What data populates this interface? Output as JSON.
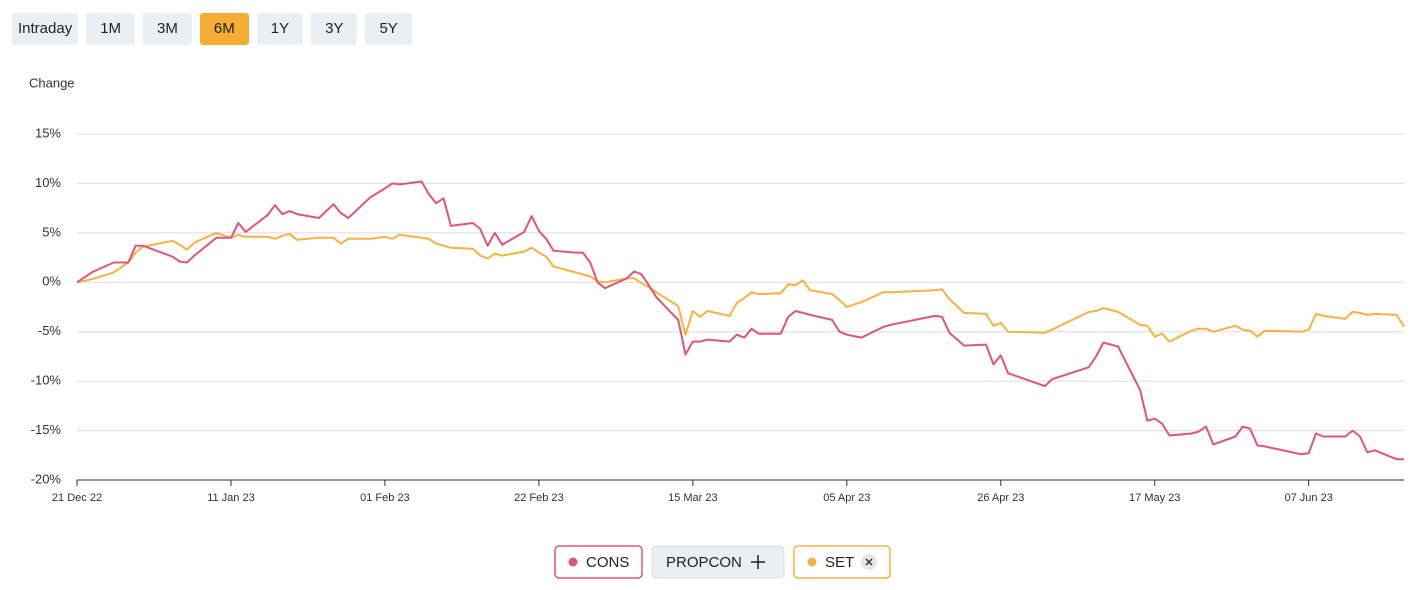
{
  "chart_data": {
    "type": "line",
    "range_buttons": [
      "Intraday",
      "1M",
      "3M",
      "6M",
      "1Y",
      "3Y",
      "5Y"
    ],
    "active_range": "6M",
    "y_label": "Change",
    "compare_options": [
      "PROPCON"
    ],
    "xlim": [
      "2022-12-21",
      "2023-06-20"
    ],
    "xticks": [
      {
        "value": "2022-12-21",
        "label": "21 Dec 22"
      },
      {
        "value": "2023-01-11",
        "label": "11 Jan 23"
      },
      {
        "value": "2023-02-01",
        "label": "01 Feb 23"
      },
      {
        "value": "2023-02-22",
        "label": "22 Feb 23"
      },
      {
        "value": "2023-03-15",
        "label": "15 Mar 23"
      },
      {
        "value": "2023-04-05",
        "label": "05 Apr 23"
      },
      {
        "value": "2023-04-26",
        "label": "26 Apr 23"
      },
      {
        "value": "2023-05-17",
        "label": "17 May 23"
      },
      {
        "value": "2023-06-07",
        "label": "07 Jun 23"
      }
    ],
    "ylim": [
      -20,
      15
    ],
    "yticks": [
      {
        "value": -20,
        "label": "-20%"
      },
      {
        "value": -15,
        "label": "-15%"
      },
      {
        "value": -10,
        "label": "-10%"
      },
      {
        "value": -5,
        "label": "-5%"
      },
      {
        "value": 0,
        "label": "0%"
      },
      {
        "value": 5,
        "label": "5%"
      },
      {
        "value": 10,
        "label": "10%"
      },
      {
        "value": 15,
        "label": "15%"
      }
    ],
    "grid": true,
    "x": [
      "2022-12-21",
      "2022-12-23",
      "2022-12-26",
      "2022-12-28",
      "2022-12-29",
      "2022-12-30",
      "2023-01-03",
      "2023-01-04",
      "2023-01-05",
      "2023-01-06",
      "2023-01-09",
      "2023-01-11",
      "2023-01-12",
      "2023-01-13",
      "2023-01-16",
      "2023-01-17",
      "2023-01-18",
      "2023-01-19",
      "2023-01-20",
      "2023-01-23",
      "2023-01-25",
      "2023-01-26",
      "2023-01-27",
      "2023-01-30",
      "2023-02-01",
      "2023-02-02",
      "2023-02-03",
      "2023-02-06",
      "2023-02-07",
      "2023-02-08",
      "2023-02-09",
      "2023-02-10",
      "2023-02-13",
      "2023-02-14",
      "2023-02-15",
      "2023-02-16",
      "2023-02-17",
      "2023-02-20",
      "2023-02-21",
      "2023-02-22",
      "2023-02-23",
      "2023-02-24",
      "2023-02-27",
      "2023-02-28",
      "2023-03-01",
      "2023-03-02",
      "2023-03-03",
      "2023-03-06",
      "2023-03-07",
      "2023-03-08",
      "2023-03-09",
      "2023-03-10",
      "2023-03-13",
      "2023-03-14",
      "2023-03-15",
      "2023-03-16",
      "2023-03-17",
      "2023-03-20",
      "2023-03-21",
      "2023-03-22",
      "2023-03-23",
      "2023-03-24",
      "2023-03-27",
      "2023-03-28",
      "2023-03-29",
      "2023-03-30",
      "2023-03-31",
      "2023-04-03",
      "2023-04-04",
      "2023-04-05",
      "2023-04-07",
      "2023-04-10",
      "2023-04-11",
      "2023-04-17",
      "2023-04-18",
      "2023-04-19",
      "2023-04-21",
      "2023-04-24",
      "2023-04-25",
      "2023-04-26",
      "2023-04-27",
      "2023-05-02",
      "2023-05-03",
      "2023-05-08",
      "2023-05-09",
      "2023-05-10",
      "2023-05-12",
      "2023-05-15",
      "2023-05-16",
      "2023-05-17",
      "2023-05-18",
      "2023-05-19",
      "2023-05-22",
      "2023-05-23",
      "2023-05-24",
      "2023-05-25",
      "2023-05-28",
      "2023-05-29",
      "2023-05-30",
      "2023-05-31",
      "2023-06-01",
      "2023-06-06",
      "2023-06-07",
      "2023-06-08",
      "2023-06-09",
      "2023-06-12",
      "2023-06-13",
      "2023-06-14",
      "2023-06-15",
      "2023-06-16",
      "2023-06-19",
      "2023-06-20"
    ],
    "series": [
      {
        "name": "CONS",
        "color": "#e0557a",
        "values": [
          0,
          1.0,
          2.0,
          2.0,
          3.7,
          3.7,
          2.6,
          2.1,
          2.0,
          2.7,
          4.5,
          4.5,
          6.0,
          5.1,
          6.8,
          7.8,
          6.9,
          7.2,
          6.9,
          6.5,
          7.9,
          7.0,
          6.5,
          8.6,
          9.5,
          10.0,
          9.9,
          10.2,
          8.9,
          8.0,
          8.5,
          5.7,
          6.0,
          5.4,
          3.7,
          5.0,
          3.8,
          5.1,
          6.7,
          5.2,
          4.4,
          3.2,
          3.0,
          3.0,
          2.0,
          0.0,
          -0.6,
          0.4,
          1.1,
          0.8,
          -0.3,
          -1.5,
          -3.8,
          -7.3,
          -6.0,
          -6.0,
          -5.8,
          -6.0,
          -5.3,
          -5.6,
          -4.7,
          -5.2,
          -5.2,
          -3.5,
          -2.9,
          -3.1,
          -3.3,
          -3.8,
          -5.0,
          -5.3,
          -5.6,
          -4.5,
          -4.3,
          -3.4,
          -3.5,
          -5.1,
          -6.4,
          -6.3,
          -8.3,
          -7.4,
          -9.2,
          -10.5,
          -9.8,
          -8.6,
          -7.5,
          -6.1,
          -6.5,
          -10.9,
          -14.0,
          -13.8,
          -14.3,
          -15.5,
          -15.3,
          -15.1,
          -14.6,
          -16.4,
          -15.6,
          -14.6,
          -14.8,
          -16.5,
          -16.6,
          -17.4,
          -17.3,
          -15.3,
          -15.6,
          -15.6,
          -15.0,
          -15.6,
          -17.2,
          -17.0,
          -17.9,
          -17.9
        ]
      },
      {
        "name": "SET",
        "color": "#f5b342",
        "values": [
          0,
          0.3,
          1.0,
          2.0,
          3.0,
          3.6,
          4.2,
          3.8,
          3.3,
          4.0,
          5.0,
          4.5,
          4.8,
          4.6,
          4.6,
          4.4,
          4.7,
          4.9,
          4.3,
          4.5,
          4.5,
          3.9,
          4.4,
          4.4,
          4.6,
          4.4,
          4.8,
          4.5,
          4.4,
          3.9,
          3.7,
          3.5,
          3.4,
          2.7,
          2.4,
          2.9,
          2.7,
          3.1,
          3.5,
          3.0,
          2.6,
          1.6,
          1.0,
          0.8,
          0.6,
          0.1,
          0.0,
          0.4,
          0.4,
          -0.1,
          -0.5,
          -1.0,
          -2.4,
          -5.3,
          -2.9,
          -3.5,
          -2.9,
          -3.4,
          -2.1,
          -1.6,
          -1.0,
          -1.2,
          -1.1,
          -0.2,
          -0.3,
          0.2,
          -0.8,
          -1.2,
          -1.8,
          -2.5,
          -2.0,
          -1.0,
          -1.0,
          -0.8,
          -0.7,
          -1.7,
          -3.1,
          -3.2,
          -4.4,
          -4.1,
          -5.0,
          -5.1,
          -4.8,
          -3.0,
          -2.9,
          -2.6,
          -3.0,
          -4.3,
          -4.4,
          -5.5,
          -5.2,
          -6.0,
          -4.9,
          -4.7,
          -4.7,
          -5.0,
          -4.4,
          -4.8,
          -4.9,
          -5.5,
          -4.9,
          -5.0,
          -4.8,
          -3.2,
          -3.4,
          -3.7,
          -3.0,
          -3.1,
          -3.3,
          -3.2,
          -3.3,
          -4.5
        ]
      }
    ]
  }
}
